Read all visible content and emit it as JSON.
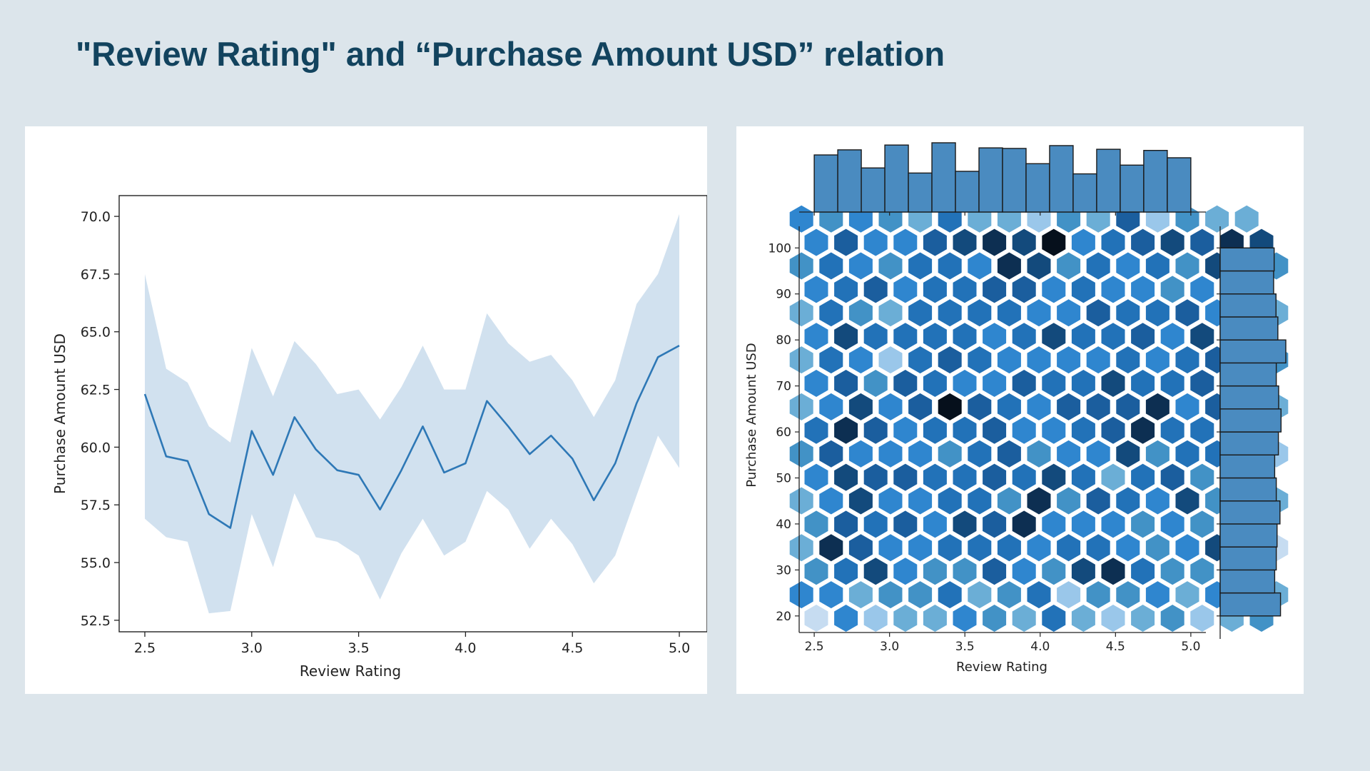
{
  "slide": {
    "title": "\"Review Rating\" and “Purchase Amount USD” relation",
    "background": "#dce5eb",
    "title_color": "#12435e"
  },
  "chart_data": [
    {
      "type": "line",
      "xlabel": "Review Rating",
      "ylabel": "Purchase Amount USD",
      "xlim": [
        2.38,
        5.13
      ],
      "ylim": [
        52.0,
        70.9
      ],
      "x_ticks": [
        "2.5",
        "3.0",
        "3.5",
        "4.0",
        "4.5",
        "5.0"
      ],
      "y_ticks": [
        "52.5",
        "55.0",
        "57.5",
        "60.0",
        "62.5",
        "65.0",
        "67.5",
        "70.0"
      ],
      "grid": false,
      "line_color": "#2e78b6",
      "band_color": "#b8d1e6",
      "x": [
        2.5,
        2.6,
        2.7,
        2.8,
        2.9,
        3.0,
        3.1,
        3.2,
        3.3,
        3.4,
        3.5,
        3.6,
        3.7,
        3.8,
        3.9,
        4.0,
        4.1,
        4.2,
        4.3,
        4.4,
        4.5,
        4.6,
        4.7,
        4.8,
        4.9,
        5.0
      ],
      "series": [
        {
          "values": [
            62.3,
            59.6,
            59.4,
            57.1,
            56.5,
            60.7,
            58.8,
            61.3,
            59.9,
            59.0,
            58.8,
            57.3,
            59.0,
            60.9,
            58.9,
            59.3,
            62.0,
            60.9,
            59.7,
            60.5,
            59.5,
            57.7,
            59.3,
            61.9,
            63.9,
            64.4
          ],
          "ci_upper": [
            67.5,
            63.4,
            62.8,
            60.9,
            60.2,
            64.3,
            62.2,
            64.6,
            63.6,
            62.3,
            62.5,
            61.2,
            62.6,
            64.4,
            62.5,
            62.5,
            65.8,
            64.5,
            63.7,
            64.0,
            62.9,
            61.3,
            62.9,
            66.2,
            67.5,
            70.1
          ],
          "ci_lower": [
            56.9,
            56.1,
            55.9,
            52.8,
            52.9,
            57.1,
            54.8,
            58.0,
            56.1,
            55.9,
            55.3,
            53.4,
            55.4,
            56.9,
            55.3,
            55.9,
            58.1,
            57.3,
            55.6,
            56.9,
            55.8,
            54.1,
            55.3,
            57.9,
            60.5,
            59.1
          ]
        }
      ]
    },
    {
      "type": "heatmap",
      "subtype": "hexbin-joint",
      "xlabel": "Review Rating",
      "ylabel": "Purchase Amount USD",
      "xlim": [
        2.4,
        5.1
      ],
      "ylim": [
        16.4,
        104.7
      ],
      "x_ticks": [
        "2.5",
        "3.0",
        "3.5",
        "4.0",
        "4.5",
        "5.0"
      ],
      "y_ticks": [
        "20",
        "30",
        "40",
        "50",
        "60",
        "70",
        "80",
        "90",
        "100"
      ],
      "grid": false,
      "color_scale": [
        "#e3eef9",
        "#c6dcf1",
        "#9ac7ea",
        "#6baed6",
        "#4292c6",
        "#2f86cf",
        "#2272b8",
        "#1b5e9e",
        "#134a7c",
        "#0d2f52",
        "#06101c"
      ],
      "hex_rows": [
        [
          1,
          5,
          2,
          3,
          3,
          5,
          4,
          3,
          6,
          3,
          2,
          3,
          4,
          2,
          3,
          4
        ],
        [
          5,
          5,
          3,
          4,
          4,
          6,
          3,
          4,
          6,
          2,
          4,
          4,
          5,
          3,
          5,
          4,
          3
        ],
        [
          4,
          6,
          8,
          5,
          4,
          4,
          7,
          5,
          4,
          8,
          9,
          6,
          4,
          4,
          6,
          5
        ],
        [
          3,
          9,
          7,
          5,
          5,
          6,
          6,
          6,
          5,
          6,
          6,
          5,
          4,
          5,
          8,
          4,
          1
        ],
        [
          4,
          7,
          6,
          7,
          5,
          8,
          7,
          9,
          5,
          5,
          5,
          4,
          5,
          4,
          5,
          6
        ],
        [
          3,
          5,
          8,
          5,
          5,
          6,
          6,
          4,
          9,
          4,
          7,
          6,
          5,
          8,
          4,
          4,
          3
        ],
        [
          5,
          8,
          7,
          7,
          6,
          6,
          7,
          6,
          8,
          6,
          3,
          6,
          7,
          4,
          6,
          7
        ],
        [
          4,
          7,
          5,
          5,
          5,
          4,
          6,
          7,
          4,
          5,
          5,
          8,
          4,
          6,
          6,
          5,
          2
        ],
        [
          6,
          9,
          7,
          5,
          6,
          6,
          7,
          5,
          5,
          6,
          7,
          9,
          6,
          6,
          8,
          5
        ],
        [
          3,
          5,
          8,
          5,
          7,
          10,
          7,
          6,
          5,
          7,
          7,
          7,
          9,
          5,
          7,
          10,
          3
        ],
        [
          5,
          7,
          4,
          7,
          6,
          5,
          5,
          7,
          6,
          6,
          8,
          6,
          6,
          7,
          5,
          5
        ],
        [
          3,
          6,
          5,
          2,
          6,
          7,
          6,
          5,
          5,
          5,
          5,
          6,
          5,
          6,
          7,
          4,
          4
        ],
        [
          5,
          8,
          6,
          6,
          6,
          6,
          5,
          6,
          8,
          6,
          6,
          7,
          5,
          8,
          9,
          6
        ],
        [
          3,
          6,
          4,
          3,
          6,
          6,
          6,
          6,
          5,
          5,
          7,
          6,
          6,
          7,
          5,
          8,
          3
        ],
        [
          5,
          6,
          7,
          5,
          6,
          6,
          7,
          7,
          5,
          6,
          5,
          5,
          4,
          5,
          6,
          4
        ],
        [
          4,
          6,
          5,
          4,
          6,
          6,
          5,
          9,
          8,
          4,
          6,
          5,
          6,
          4,
          8,
          9,
          4
        ],
        [
          5,
          7,
          5,
          5,
          7,
          8,
          9,
          8,
          10,
          5,
          6,
          7,
          8,
          7,
          9,
          8
        ],
        [
          5,
          4,
          5,
          4,
          3,
          6,
          3,
          3,
          2,
          4,
          3,
          7,
          2,
          4,
          3,
          3
        ]
      ],
      "marginal_x": {
        "bins": 16,
        "range": [
          2.5,
          5.0
        ],
        "counts": [
          202,
          220,
          156,
          237,
          138,
          245,
          144,
          227,
          225,
          171,
          235,
          135,
          222,
          166,
          218,
          192
        ]
      },
      "marginal_y": {
        "bins": 16,
        "range": [
          20,
          100
        ],
        "counts": [
          228,
          206,
          212,
          215,
          226,
          212,
          206,
          220,
          230,
          221,
          212,
          248,
          218,
          211,
          202,
          204
        ]
      },
      "bar_color": "#4a8bc0"
    }
  ]
}
